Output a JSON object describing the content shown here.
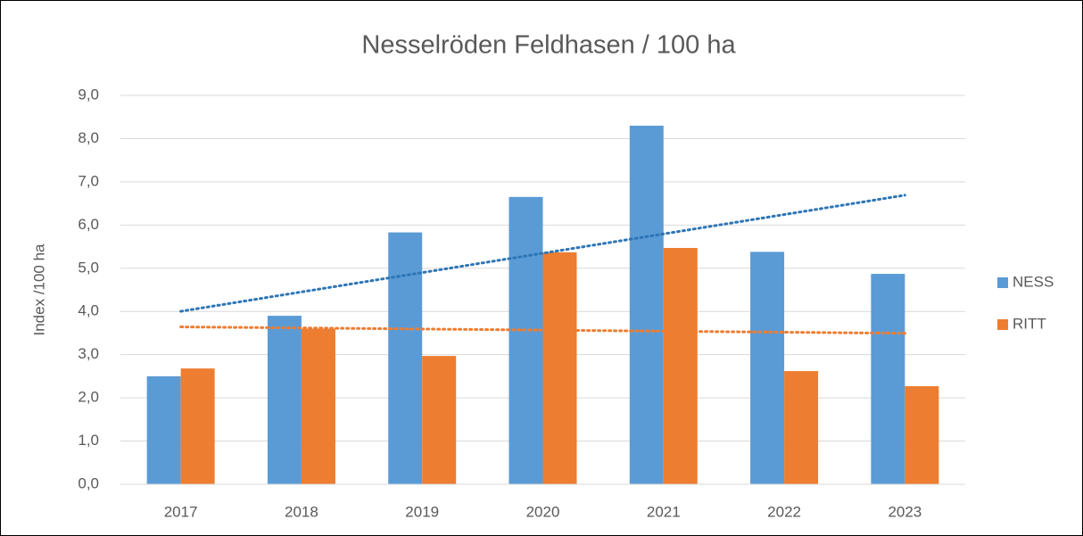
{
  "chart_data": {
    "type": "bar",
    "title": "Nesselröden Feldhasen / 100 ha",
    "y_label": "Index /100 ha",
    "categories": [
      "2017",
      "2018",
      "2019",
      "2020",
      "2021",
      "2022",
      "2023"
    ],
    "series": [
      {
        "name": "NESS",
        "color": "#5b9bd5",
        "trend_color": "#2e75b6",
        "values": [
          2.5,
          3.9,
          5.83,
          6.65,
          8.3,
          5.38,
          4.87
        ]
      },
      {
        "name": "RITT",
        "color": "#ed7d31",
        "trend_color": "#ed7d31",
        "values": [
          2.68,
          3.6,
          2.97,
          5.37,
          5.47,
          2.62,
          2.27
        ]
      }
    ],
    "trendline": "linear",
    "ylim": [
      0,
      9
    ],
    "yticks": [
      {
        "value": 0,
        "label": "0,0"
      },
      {
        "value": 1,
        "label": "1,0"
      },
      {
        "value": 2,
        "label": "2,0"
      },
      {
        "value": 3,
        "label": "3,0"
      },
      {
        "value": 4,
        "label": "4,0"
      },
      {
        "value": 5,
        "label": "5,0"
      },
      {
        "value": 6,
        "label": "6,0"
      },
      {
        "value": 7,
        "label": "7,0"
      },
      {
        "value": 8,
        "label": "8,0"
      },
      {
        "value": 9,
        "label": "9,0"
      }
    ],
    "grid": true,
    "legend": "right"
  }
}
